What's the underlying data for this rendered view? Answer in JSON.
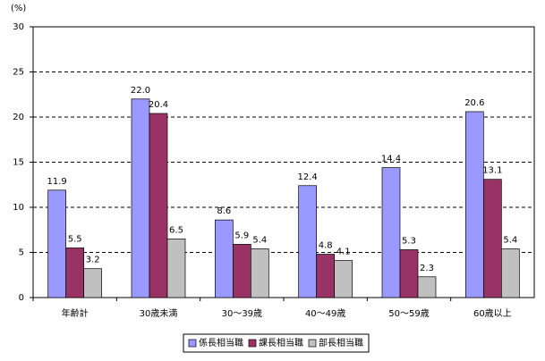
{
  "chart_data": {
    "type": "bar",
    "y_label": "(%)",
    "categories": [
      "年齢計",
      "30歳未満",
      "30～39歳",
      "40～49歳",
      "50～59歳",
      "60歳以上"
    ],
    "series": [
      {
        "name": "係長相当職",
        "color": "#9999ff",
        "values": [
          11.9,
          22.0,
          8.6,
          12.4,
          14.4,
          20.6
        ],
        "value_labels": [
          "11.9",
          "22.0",
          "8.6",
          "12.4",
          "14.4",
          "20.6"
        ]
      },
      {
        "name": "課長相当職",
        "color": "#993366",
        "values": [
          5.5,
          20.4,
          5.9,
          4.8,
          5.3,
          13.1
        ],
        "value_labels": [
          "5.5",
          "20.4",
          "5.9",
          "4.8",
          "5.3",
          "13.1"
        ]
      },
      {
        "name": "部長相当職",
        "color": "#c0c0c0",
        "values": [
          3.2,
          6.5,
          5.4,
          4.1,
          2.3,
          5.4
        ],
        "value_labels": [
          "3.2",
          "6.5",
          "5.4",
          "4.1",
          "2.3",
          "5.4"
        ]
      }
    ],
    "ylim": [
      0,
      30
    ],
    "yticks": [
      0,
      5,
      10,
      15,
      20,
      25,
      30
    ],
    "grid": true,
    "legend": "bottom"
  }
}
